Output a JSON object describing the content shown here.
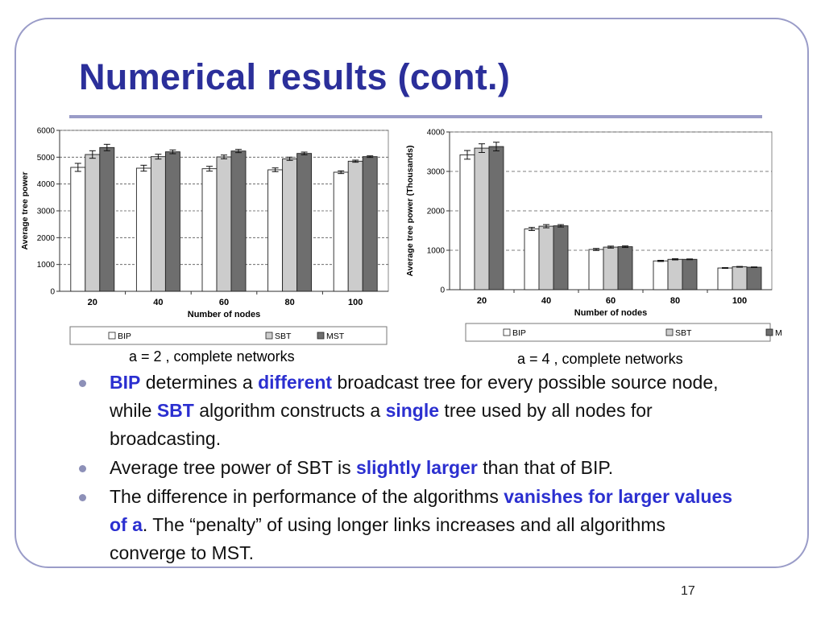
{
  "slide": {
    "title": "Numerical results (cont.)",
    "page_number": "17"
  },
  "captions": [
    "a = 2 , complete networks",
    "a = 4 , complete networks"
  ],
  "bullets": [
    {
      "parts": [
        {
          "text": "BIP",
          "hl": true
        },
        {
          "text": " determines a ",
          "hl": false
        },
        {
          "text": "different",
          "hl": true
        },
        {
          "text": " broadcast tree for every possible source node, while ",
          "hl": false
        },
        {
          "text": "SBT",
          "hl": true
        },
        {
          "text": " algorithm constructs a ",
          "hl": false
        },
        {
          "text": "single",
          "hl": true
        },
        {
          "text": " tree used by all nodes for broadcasting.",
          "hl": false
        }
      ]
    },
    {
      "parts": [
        {
          "text": "Average tree power of SBT is ",
          "hl": false
        },
        {
          "text": "slightly larger",
          "hl": true
        },
        {
          "text": " than that of BIP.",
          "hl": false
        }
      ]
    },
    {
      "parts": [
        {
          "text": "The difference in performance of the algorithms ",
          "hl": false
        },
        {
          "text": "vanishes for larger values of a",
          "hl": true
        },
        {
          "text": ". The “penalty” of using longer links increases and all algorithms converge to MST.",
          "hl": false
        }
      ]
    }
  ],
  "colors": {
    "title": "#2b2f9a",
    "accent": "#2b2fd0",
    "BIP": "#ffffff",
    "SBT": "#cccccc",
    "MST": "#6e6e6e"
  },
  "chart_data": [
    {
      "type": "bar",
      "categories": [
        "20",
        "40",
        "60",
        "80",
        "100"
      ],
      "series": [
        {
          "name": "BIP",
          "values": [
            4620,
            4590,
            4570,
            4530,
            4440
          ],
          "err": [
            150,
            110,
            90,
            70,
            50
          ]
        },
        {
          "name": "SBT",
          "values": [
            5100,
            5020,
            5010,
            4940,
            4850
          ],
          "err": [
            140,
            90,
            70,
            60,
            40
          ]
        },
        {
          "name": "MST",
          "values": [
            5360,
            5200,
            5230,
            5140,
            5020
          ],
          "err": [
            120,
            70,
            60,
            50,
            30
          ]
        }
      ],
      "title": "",
      "xlabel": "Number of nodes",
      "ylabel": "Average tree power",
      "ylim": [
        0,
        6000
      ],
      "yticks": [
        0,
        1000,
        2000,
        3000,
        4000,
        5000,
        6000
      ],
      "ytick_labels": [
        "0",
        "1000",
        "2000",
        "3000",
        "4000",
        "5000",
        "6000"
      ],
      "grid": true,
      "legend": "bottom"
    },
    {
      "type": "bar",
      "categories": [
        "20",
        "40",
        "60",
        "80",
        "100"
      ],
      "series": [
        {
          "name": "BIP",
          "values": [
            3420,
            1540,
            1020,
            730,
            550
          ],
          "err": [
            110,
            40,
            25,
            15,
            10
          ]
        },
        {
          "name": "SBT",
          "values": [
            3590,
            1610,
            1080,
            770,
            580
          ],
          "err": [
            110,
            40,
            25,
            15,
            10
          ]
        },
        {
          "name": "MST",
          "values": [
            3630,
            1620,
            1090,
            770,
            570
          ],
          "err": [
            110,
            30,
            20,
            10,
            8
          ]
        }
      ],
      "title": "",
      "xlabel": "Number of nodes",
      "ylabel": "Average tree power   (Thousands)",
      "ylim": [
        0,
        4000
      ],
      "yticks": [
        0,
        1000,
        2000,
        3000,
        4000
      ],
      "ytick_labels": [
        "0",
        "1000",
        "2000",
        "3000",
        "4000"
      ],
      "grid": true,
      "legend": "bottom"
    }
  ]
}
